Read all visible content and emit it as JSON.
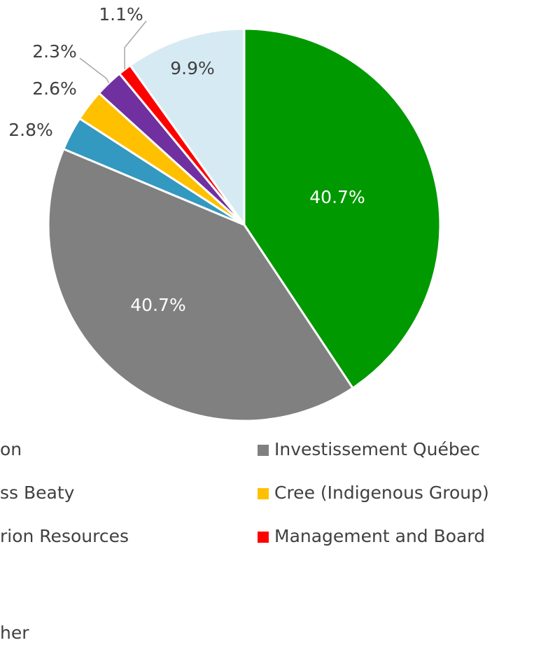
{
  "chart_data": {
    "type": "pie",
    "series": [
      {
        "name": "on",
        "color": "#009900",
        "values": [
          40.7
        ],
        "value_labels": [
          "40.7%"
        ]
      },
      {
        "name": "Investissement Québec",
        "color": "#808080",
        "values": [
          40.7
        ],
        "value_labels": [
          "40.7%"
        ]
      },
      {
        "name": "ss Beaty",
        "color": "#3399c0",
        "values": [
          2.8
        ],
        "value_labels": [
          "2.8%"
        ]
      },
      {
        "name": "Cree (Indigenous Group)",
        "color": "#ffc000",
        "values": [
          2.6
        ],
        "value_labels": [
          "2.6%"
        ]
      },
      {
        "name": "rion Resources",
        "color": "#7030a0",
        "values": [
          2.3
        ],
        "value_labels": [
          "2.3%"
        ]
      },
      {
        "name": "Management and Board",
        "color": "#ff0000",
        "values": [
          1.1
        ],
        "value_labels": [
          "1.1%"
        ]
      },
      {
        "name": "her",
        "color": "#d6eaf3",
        "values": [
          9.9
        ],
        "value_labels": [
          "9.9%"
        ]
      }
    ]
  }
}
